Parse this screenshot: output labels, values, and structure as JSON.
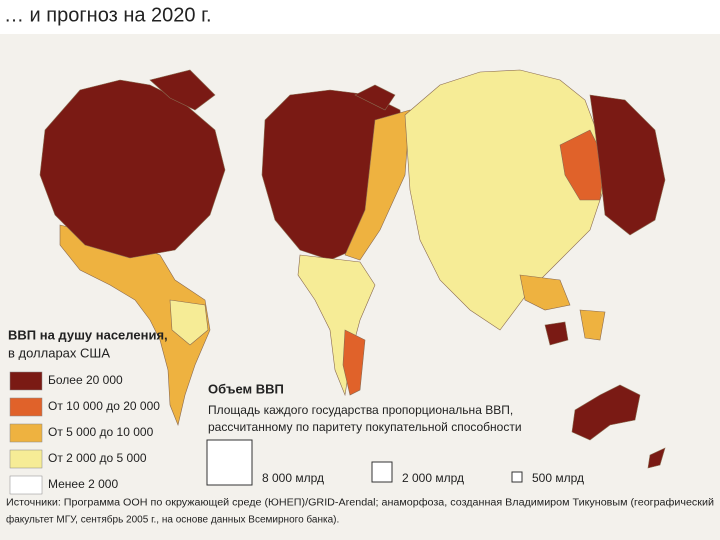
{
  "header": {
    "title": "… и прогноз на 2020 г."
  },
  "legend": {
    "title_lines": [
      "ВВП на душу населения,",
      "в долларах США"
    ],
    "items": [
      {
        "label": "Более 20 000",
        "color": "#7a1a14"
      },
      {
        "label": "От 10 000 до 20 000",
        "color": "#e0622a"
      },
      {
        "label": "От 5 000 до 10 000",
        "color": "#eeb240"
      },
      {
        "label": "От 2 000 до 5 000",
        "color": "#f6ec96"
      },
      {
        "label": "Менее 2 000",
        "color": "#ffffff"
      }
    ]
  },
  "volume": {
    "title": "Объем ВВП",
    "description_lines": [
      "Площадь каждого государства пропорциональна ВВП,",
      "рассчитанному по паритету покупательной способности"
    ],
    "scale": [
      "8 000 млрд",
      "2 000 млрд",
      "500 млрд"
    ]
  },
  "source_lines": [
    "Источники: Программа ООН по окружающей среде (ЮНЕП)/GRID-Arendal; анаморфоза, созданная Владимиром Тикуновым (географический",
    "факультет МГУ, сентябрь 2005 г., на основе данных Всемирного банка)."
  ]
}
